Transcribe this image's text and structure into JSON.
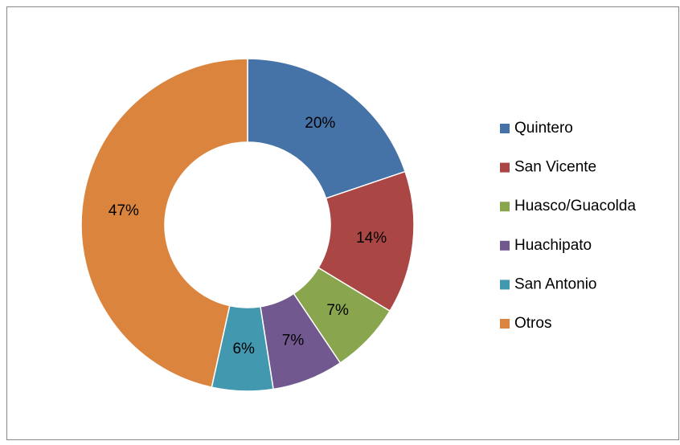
{
  "chart_data": {
    "type": "donut",
    "categories": [
      "Quintero",
      "San Vicente",
      "Huasco/Guacolda",
      "Huachipato",
      "San Antonio",
      "Otros"
    ],
    "values": [
      20,
      14,
      7,
      7,
      6,
      47
    ],
    "value_labels": [
      "20%",
      "14%",
      "7%",
      "7%",
      "6%",
      "47%"
    ],
    "colors": [
      "#4572a7",
      "#aa4643",
      "#89a54e",
      "#71588f",
      "#4198af",
      "#db843d"
    ],
    "legend": "right"
  }
}
